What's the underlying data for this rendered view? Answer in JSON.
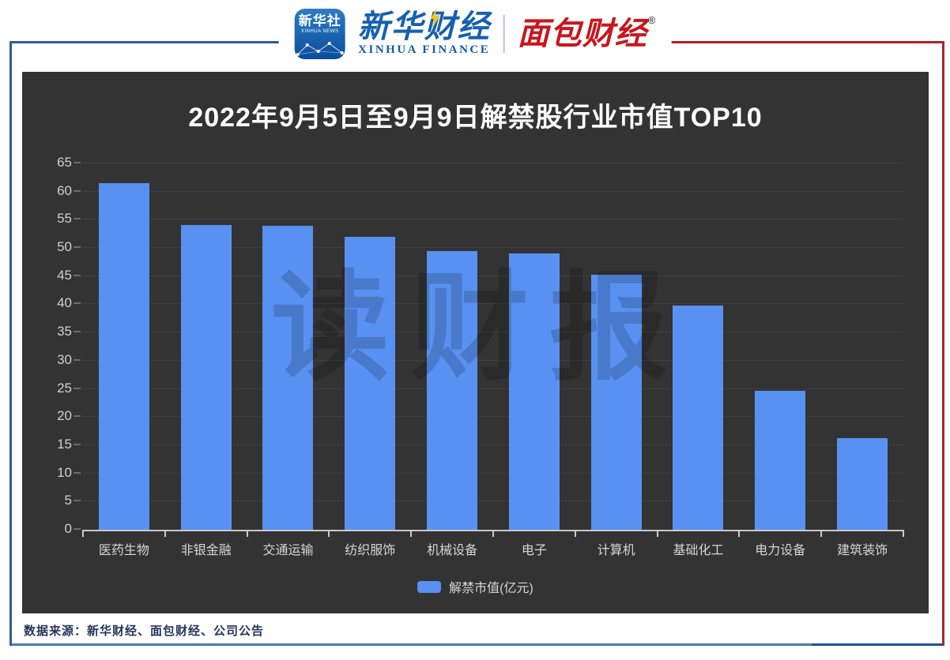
{
  "header": {
    "xinhua_app_icon": {
      "icon": "xinhua-news-app-icon",
      "line1": "新华社",
      "line2": "XINHUA NEWS"
    },
    "xinhua_finance": {
      "zh": "新华财经",
      "en": "XINHUA FINANCE",
      "bolt_icon": "lightning-bolt-icon"
    },
    "bread_finance": {
      "zh": "面包财经",
      "reg_mark": "®"
    }
  },
  "chart_data": {
    "type": "bar",
    "title": "2022年9月5日至9月9日解禁股行业市值TOP10",
    "categories": [
      "医药生物",
      "非银金融",
      "交通运输",
      "纺织服饰",
      "机械设备",
      "电子",
      "计算机",
      "基础化工",
      "电力设备",
      "建筑装饰"
    ],
    "values": [
      61.5,
      54.1,
      53.9,
      52.0,
      49.4,
      49.0,
      45.2,
      39.8,
      24.6,
      16.3
    ],
    "legend": [
      "解禁市值(亿元)"
    ],
    "xlabel": "",
    "ylabel": "",
    "ylim": [
      0,
      65
    ],
    "ytick_step": 5,
    "grid": true,
    "legend_position": "bottom",
    "bar_color": "#5891F1",
    "watermark": "读财报",
    "panel_background": "#333333"
  },
  "footer": {
    "source": "数据来源：新华财经、面包财经、公司公告"
  },
  "colors": {
    "frame_blue": "#2d5c9e",
    "frame_red": "#b02228",
    "title_text": "#ffffff",
    "axis_text": "#d0d0d0"
  }
}
